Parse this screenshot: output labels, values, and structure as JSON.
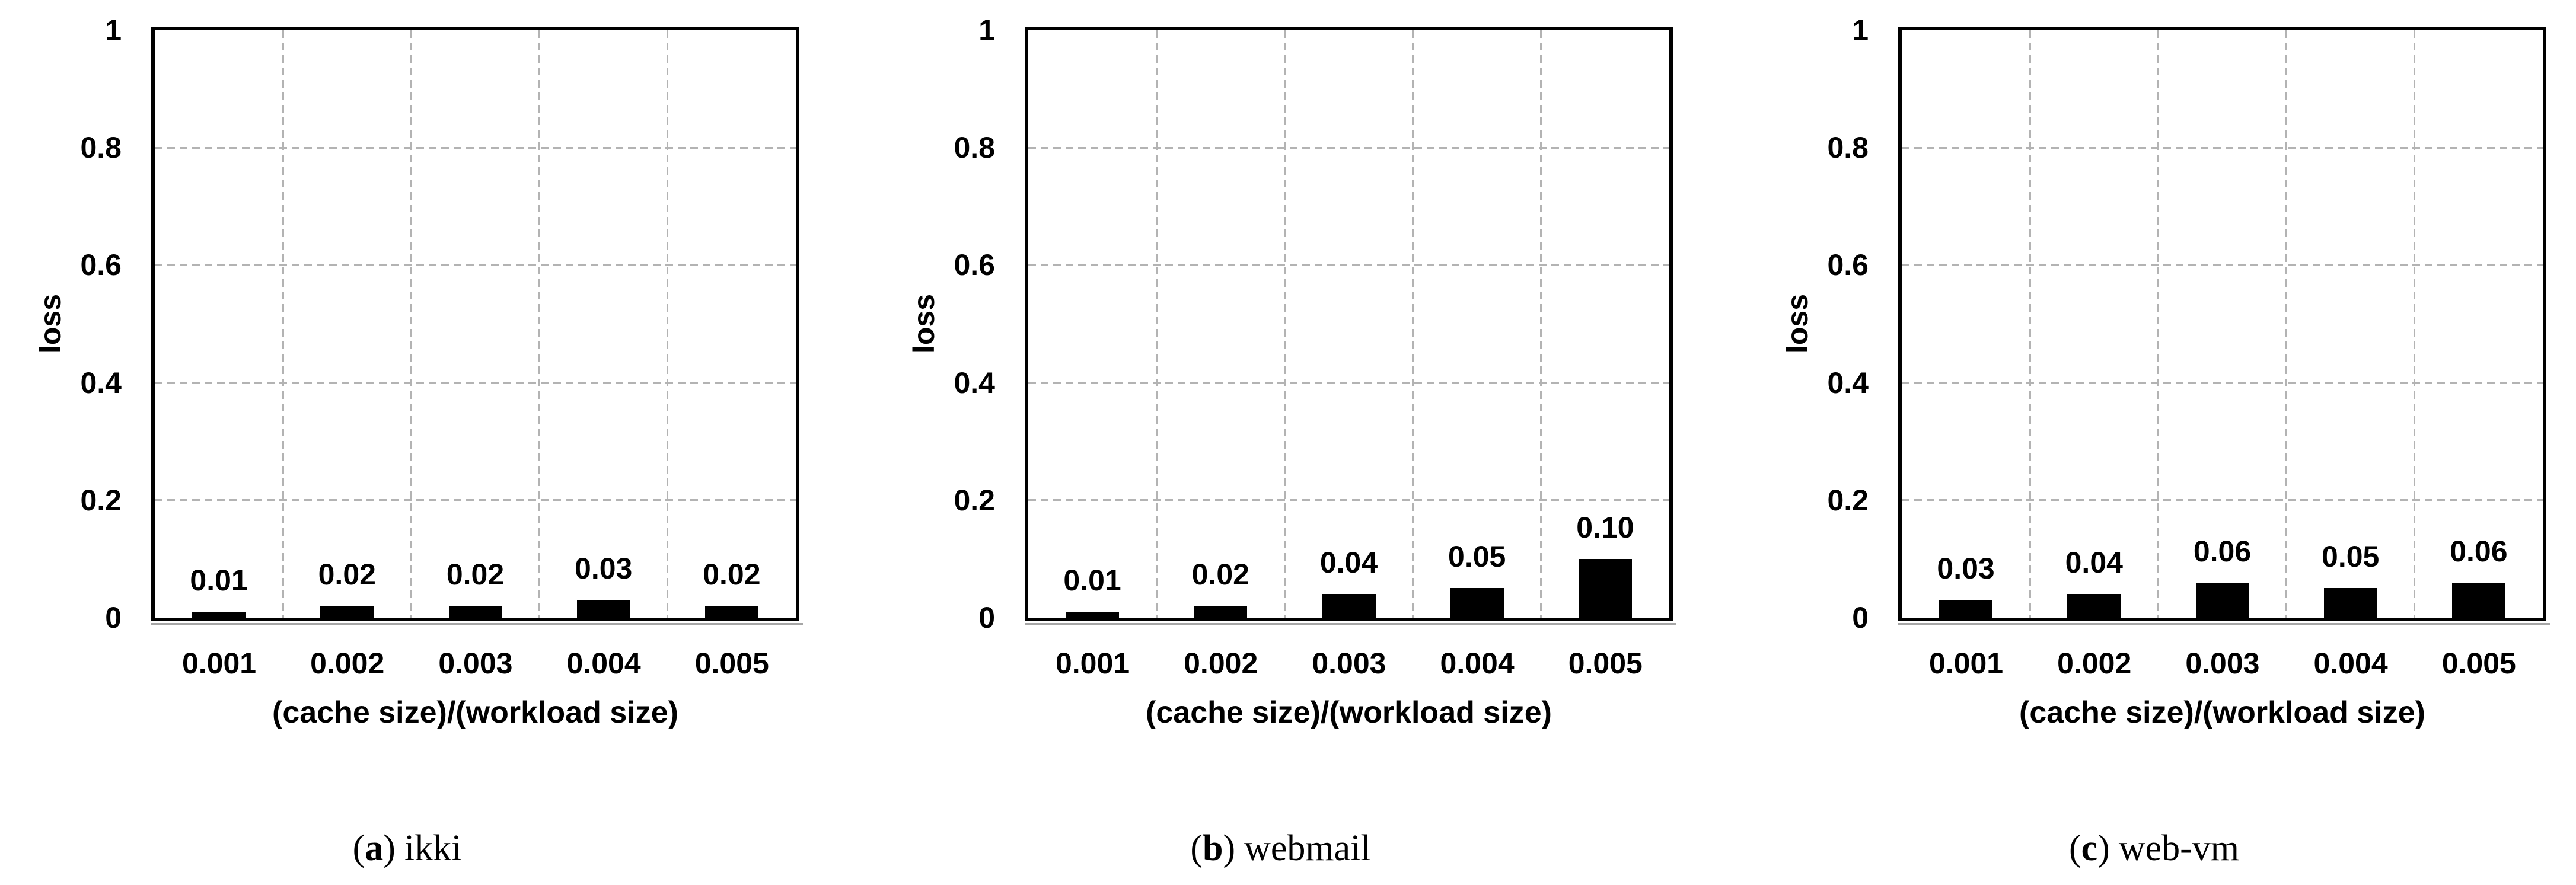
{
  "figure": {
    "background": "#ffffff",
    "panel_count": 3
  },
  "colors": {
    "bar": "#000000",
    "border": "#000000",
    "grid": "#b3b3b3",
    "baseline_shadow": "#a6a6a6",
    "text": "#000000"
  },
  "axes": {
    "y_title": "loss",
    "x_title": "(cache size)/(workload size)",
    "y_ticks": [
      1,
      0.8,
      0.6,
      0.4,
      0.2,
      0
    ],
    "y_tick_labels": [
      "1",
      "0.8",
      "0.6",
      "0.4",
      "0.2",
      "0"
    ],
    "ylim": [
      0,
      1
    ],
    "grid": "dashed",
    "legend": "none",
    "categories": [
      "0.001",
      "0.002",
      "0.003",
      "0.004",
      "0.005"
    ]
  },
  "chart_data": [
    {
      "type": "bar",
      "title": "ikki",
      "caption": {
        "open": "(",
        "letter": "a",
        "close": ")",
        "label": "ikki"
      },
      "categories": [
        "0.001",
        "0.002",
        "0.003",
        "0.004",
        "0.005"
      ],
      "values": [
        0.01,
        0.02,
        0.02,
        0.03,
        0.02
      ],
      "value_labels": [
        "0.01",
        "0.02",
        "0.02",
        "0.03",
        "0.02"
      ],
      "xlabel": "(cache size)/(workload size)",
      "ylabel": "loss",
      "ylim": [
        0,
        1
      ]
    },
    {
      "type": "bar",
      "title": "webmail",
      "caption": {
        "open": "(",
        "letter": "b",
        "close": ")",
        "label": "webmail"
      },
      "categories": [
        "0.001",
        "0.002",
        "0.003",
        "0.004",
        "0.005"
      ],
      "values": [
        0.01,
        0.02,
        0.04,
        0.05,
        0.1
      ],
      "value_labels": [
        "0.01",
        "0.02",
        "0.04",
        "0.05",
        "0.10"
      ],
      "xlabel": "(cache size)/(workload size)",
      "ylabel": "loss",
      "ylim": [
        0,
        1
      ]
    },
    {
      "type": "bar",
      "title": "web-vm",
      "caption": {
        "open": "(",
        "letter": "c",
        "close": ")",
        "label": "web-vm"
      },
      "categories": [
        "0.001",
        "0.002",
        "0.003",
        "0.004",
        "0.005"
      ],
      "values": [
        0.03,
        0.04,
        0.06,
        0.05,
        0.06
      ],
      "value_labels": [
        "0.03",
        "0.04",
        "0.06",
        "0.05",
        "0.06"
      ],
      "xlabel": "(cache size)/(workload size)",
      "ylabel": "loss",
      "ylim": [
        0,
        1
      ]
    }
  ]
}
